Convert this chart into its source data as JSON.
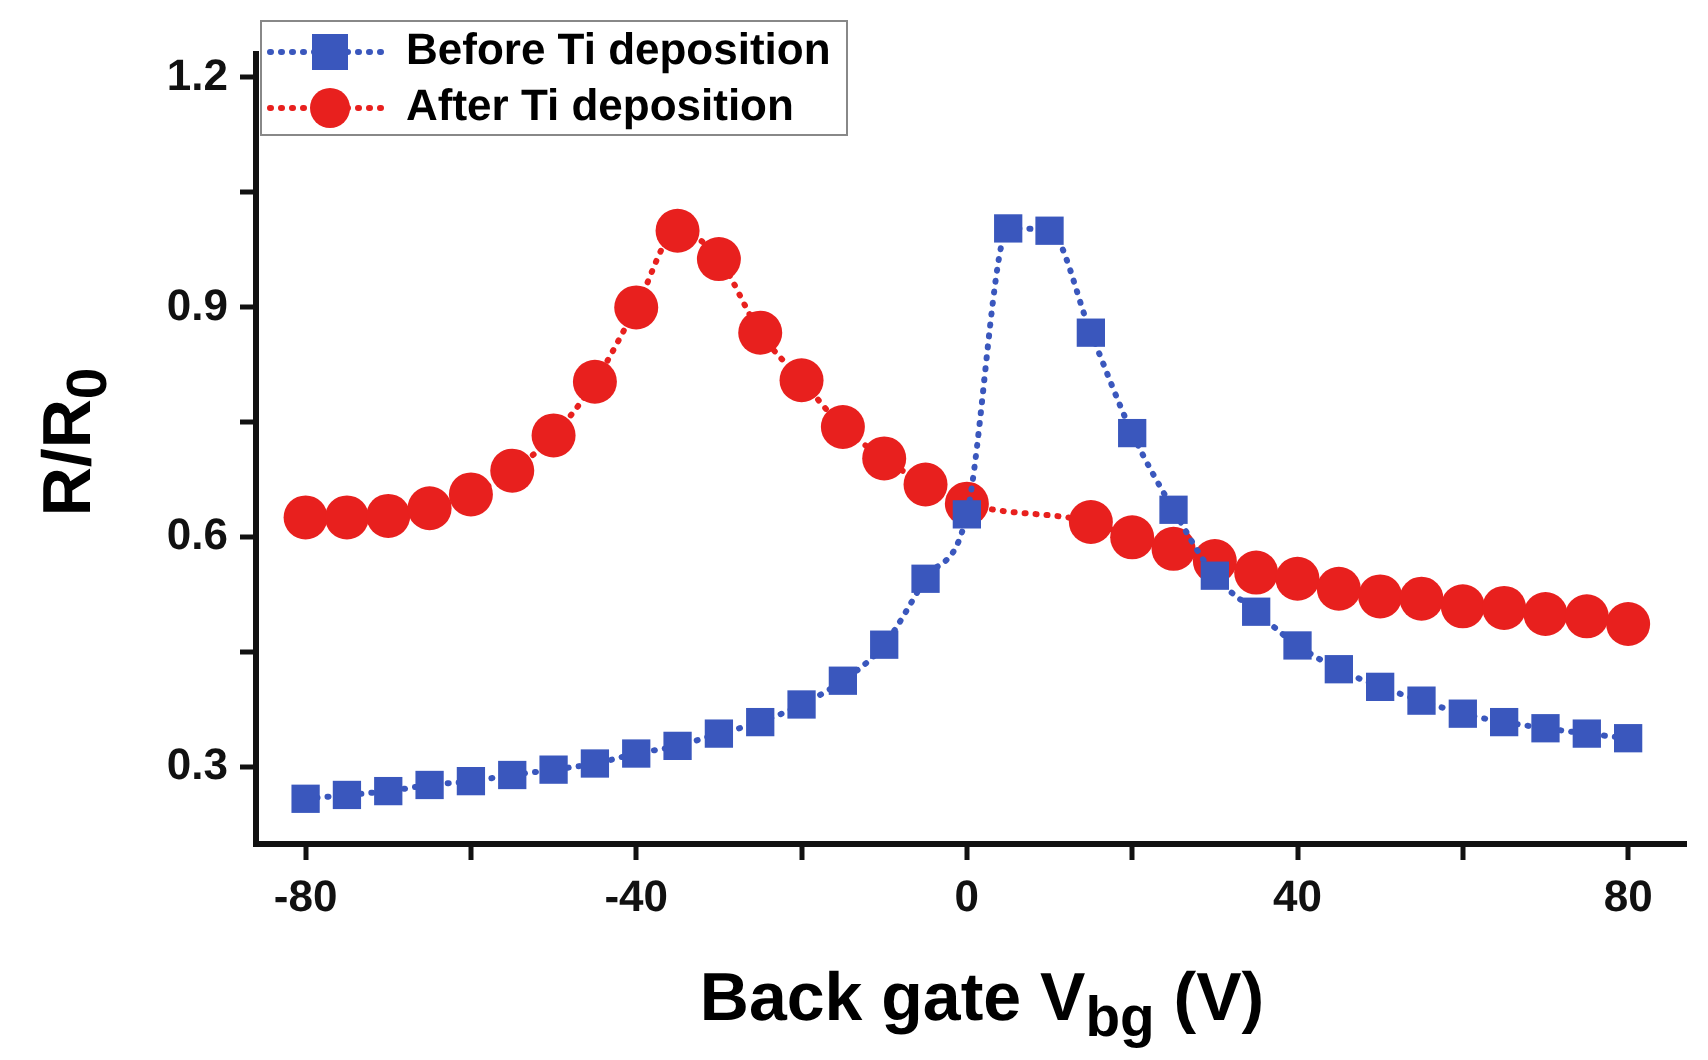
{
  "chart_data": {
    "type": "line",
    "xlabel": "Back gate V$_{bg}$ (V)",
    "ylabel": "R/R$_{0}$",
    "xlim": [
      -86,
      87
    ],
    "ylim": [
      0.2,
      1.23
    ],
    "xticks": [
      -80,
      {
        "value": -60,
        "label": null
      },
      -40,
      {
        "value": -20,
        "label": null
      },
      0,
      {
        "value": 20,
        "label": null
      },
      40,
      {
        "value": 60,
        "label": null
      },
      80
    ],
    "yticks": [
      0.3,
      {
        "value": 0.45,
        "label": null
      },
      0.6,
      {
        "value": 0.75,
        "label": null
      },
      0.9,
      {
        "value": 1.05,
        "label": null
      },
      1.2
    ],
    "legend": "top left",
    "line_style": "dotted",
    "series": [
      {
        "name": "Before Ti deposition",
        "color": "#3a57bd",
        "marker": "square",
        "x": [
          -80,
          -75,
          -70,
          -65,
          -60,
          -55,
          -50,
          -45,
          -40,
          -35,
          -30,
          -25,
          -20,
          -15,
          -10,
          -5,
          0,
          5,
          10,
          15,
          20,
          25,
          30,
          35,
          40,
          45,
          50,
          55,
          60,
          65,
          70,
          75,
          80
        ],
        "values": [
          0.259,
          0.264,
          0.269,
          0.277,
          0.282,
          0.29,
          0.297,
          0.305,
          0.318,
          0.328,
          0.344,
          0.359,
          0.382,
          0.413,
          0.46,
          0.546,
          0.63,
          1.003,
          1.0,
          0.867,
          0.736,
          0.636,
          0.55,
          0.503,
          0.459,
          0.428,
          0.405,
          0.387,
          0.37,
          0.359,
          0.351,
          0.344,
          0.338
        ]
      },
      {
        "name": "After Ti deposition",
        "color": "#e8201e",
        "marker": "circle",
        "x": [
          -80,
          -75,
          -70,
          -65,
          -60,
          -55,
          -50,
          -45,
          -40,
          -35,
          -30,
          -25,
          -20,
          -15,
          -10,
          -5,
          0,
          15,
          20,
          25,
          30,
          35,
          40,
          45,
          50,
          55,
          60,
          65,
          70,
          75,
          80
        ],
        "values": [
          0.626,
          0.626,
          0.628,
          0.638,
          0.656,
          0.687,
          0.733,
          0.803,
          0.9,
          1.0,
          0.963,
          0.867,
          0.805,
          0.744,
          0.703,
          0.669,
          0.644,
          0.62,
          0.6,
          0.585,
          0.569,
          0.554,
          0.546,
          0.533,
          0.523,
          0.52,
          0.51,
          0.508,
          0.5,
          0.497,
          0.487
        ]
      }
    ]
  }
}
